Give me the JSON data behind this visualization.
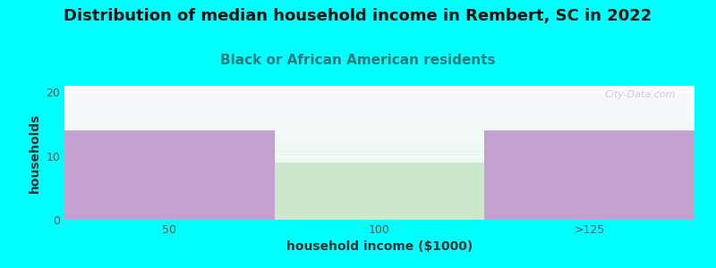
{
  "title": "Distribution of median household income in Rembert, SC in 2022",
  "subtitle": "Black or African American residents",
  "xlabel": "household income ($1000)",
  "ylabel": "households",
  "categories": [
    "50",
    "100",
    ">125"
  ],
  "values": [
    14,
    9,
    14
  ],
  "bar_colors": [
    "#c4a0d0",
    "#cce8cc",
    "#c4a0d0"
  ],
  "bar_width": 1.0,
  "ylim": [
    0,
    21
  ],
  "yticks": [
    0,
    10,
    20
  ],
  "background_color": "#00ffff",
  "title_fontsize": 13,
  "subtitle_fontsize": 11,
  "subtitle_color": "#2a7a7a",
  "axis_label_fontsize": 10,
  "tick_fontsize": 9,
  "title_color": "#111111",
  "watermark": "City-Data.com"
}
